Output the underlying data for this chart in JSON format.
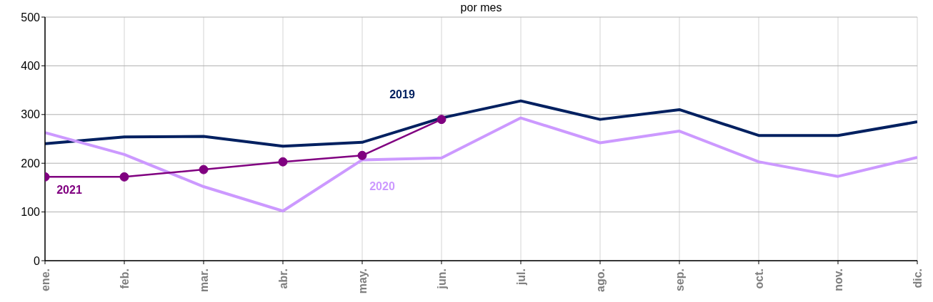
{
  "chart_data": {
    "type": "line",
    "title": "por mes",
    "categories": [
      "ene.",
      "feb.",
      "mar.",
      "abr.",
      "may.",
      "jun.",
      "jul.",
      "ago.",
      "sep.",
      "oct.",
      "nov.",
      "dic."
    ],
    "series": [
      {
        "name": "2019",
        "color": "#002060",
        "values": [
          240,
          254,
          255,
          235,
          243,
          293,
          328,
          290,
          310,
          257,
          257,
          285
        ]
      },
      {
        "name": "2020",
        "color": "#cc99ff",
        "values": [
          263,
          218,
          152,
          102,
          207,
          211,
          293,
          242,
          266,
          203,
          173,
          212
        ]
      },
      {
        "name": "2021",
        "color": "#800080",
        "marker": "circle",
        "values": [
          172,
          172,
          187,
          203,
          216,
          290,
          null,
          null,
          null,
          null,
          null,
          null
        ]
      }
    ],
    "ylim": [
      0,
      500
    ],
    "yticks": [
      0,
      100,
      200,
      300,
      400,
      500
    ],
    "grid": true
  }
}
